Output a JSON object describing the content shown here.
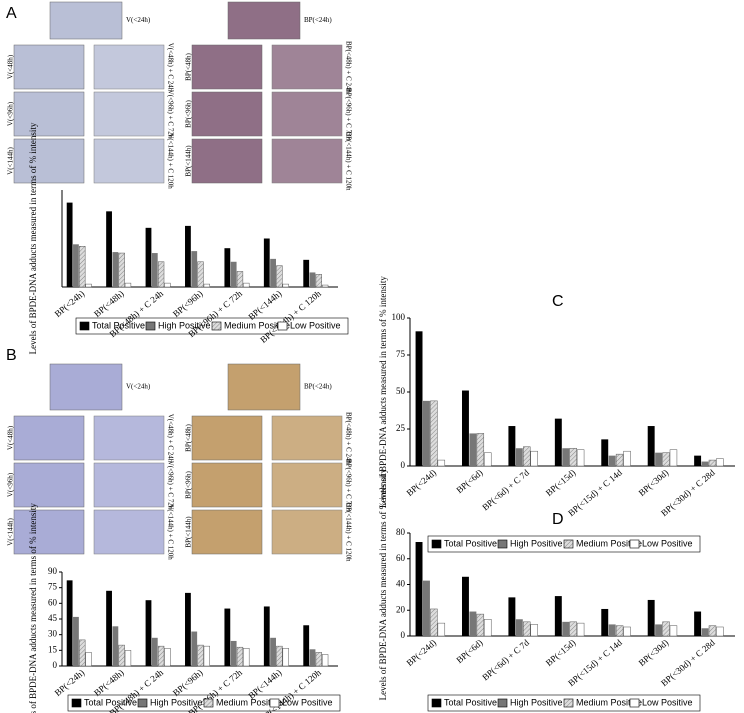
{
  "panels": [
    {
      "label": "A",
      "images": [
        "V(<24h)",
        "V(<48h)",
        "V(<48h) + C 24h",
        "V(<96h)",
        "V(<96h) + C 72h",
        "V(<144h)",
        "V(<144h) + C 120h",
        "BP(<24h)",
        "BP(<48h)",
        "BP(<48h) + C 24h",
        "BP(<96h)",
        "BP(<96h) + C 72h",
        "BP(<144h)",
        "BP(<144h) + C 120h"
      ]
    },
    {
      "label": "B",
      "images": [
        "V(<24h)",
        "V(<48h)",
        "V(<48h) + C 24h",
        "V(<96h)",
        "V(<96h) + C 72h",
        "V(<144h)",
        "V(<144h) + C 120h",
        "BP(<24h)",
        "BP(<48h)",
        "BP(<48h) + C 24h",
        "BP(<96h)",
        "BP(<96h) + C 72h",
        "BP(<144h)",
        "BP(<144h) + C 120h"
      ]
    },
    {
      "label": "C"
    },
    {
      "label": "D"
    }
  ],
  "chart_data": [
    {
      "type": "bar",
      "ylabel": "Levels of BPDE-DNA adducts measured in terms of % intensity",
      "categories": [
        "BP(<24h)",
        "BP(<48h)",
        "BP(<48h) + C 24h",
        "BP(<96h)",
        "BP(<96h) + C 72h",
        "BP(<144h)",
        "BP(<144h) + C 120h"
      ],
      "series": [
        {
          "name": "Total Positive",
          "color": "#000000",
          "values": [
            87,
            78,
            61,
            63,
            40,
            50,
            28
          ]
        },
        {
          "name": "High Positive",
          "color": "#777777",
          "values": [
            44,
            36,
            35,
            37,
            26,
            29,
            15
          ]
        },
        {
          "name": "Medium Positive",
          "color": "#cccccc",
          "values": [
            42,
            35,
            26,
            26,
            16,
            22,
            13
          ]
        },
        {
          "name": "Low Positive",
          "color": "#ffffff",
          "values": [
            3,
            4,
            4,
            3,
            4,
            3,
            2
          ]
        }
      ],
      "ylim": [
        0,
        100
      ]
    },
    {
      "type": "bar",
      "ylabel": "Levels of BPDE-DNA adducts measured in terms of % intensity",
      "categories": [
        "BP(<24h)",
        "BP(<48h)",
        "BP(<48h) + C 24h",
        "BP(<96h)",
        "BP(<96h) + C 72h",
        "BP(<144h)",
        "BP(<144h) + C 120h"
      ],
      "series": [
        {
          "name": "Total Positive",
          "color": "#000000",
          "values": [
            82,
            72,
            63,
            70,
            55,
            57,
            39
          ]
        },
        {
          "name": "High Positive",
          "color": "#777777",
          "values": [
            47,
            38,
            27,
            33,
            24,
            27,
            16
          ]
        },
        {
          "name": "Medium Positive",
          "color": "#cccccc",
          "values": [
            25,
            20,
            19,
            20,
            18,
            19,
            13
          ]
        },
        {
          "name": "Low Positive",
          "color": "#ffffff",
          "values": [
            13,
            15,
            17,
            19,
            17,
            17,
            11
          ]
        }
      ],
      "ylim": [
        0,
        90
      ],
      "yticks": [
        0,
        15,
        30,
        45,
        60,
        75,
        90
      ]
    },
    {
      "type": "bar",
      "ylabel": "Levels of BPDE-DNA adducts measured in terms of % intensity",
      "categories": [
        "BP(<24d)",
        "BP(<6d)",
        "BP(<6d) + C 7d",
        "BP(<15d)",
        "BP(<15d) + C 14d",
        "BP(<30d)",
        "BP(<30d) + C 28d"
      ],
      "series": [
        {
          "name": "Total Positive",
          "color": "#000000",
          "values": [
            91,
            51,
            27,
            32,
            18,
            27,
            7
          ]
        },
        {
          "name": "High Positive",
          "color": "#777777",
          "values": [
            44,
            22,
            12,
            12,
            7,
            9,
            3
          ]
        },
        {
          "name": "Medium Positive",
          "color": "#cccccc",
          "values": [
            44,
            22,
            13,
            12,
            8,
            9,
            4
          ]
        },
        {
          "name": "Low Positive",
          "color": "#ffffff",
          "values": [
            4,
            9,
            10,
            11,
            10,
            11,
            5
          ]
        }
      ],
      "ylim": [
        0,
        100
      ],
      "yticks": [
        0,
        25,
        50,
        75,
        100
      ]
    },
    {
      "type": "bar",
      "ylabel": "Levels of BPDE-DNA adducts measured in terms of % intensity",
      "categories": [
        "BP(<24d)",
        "BP(<6d)",
        "BP(<6d) + C 7d",
        "BP(<15d)",
        "BP(<15d) + C 14d",
        "BP(<30d)",
        "BP(<30d) + C 28d"
      ],
      "series": [
        {
          "name": "Total Positive",
          "color": "#000000",
          "values": [
            73,
            46,
            30,
            31,
            21,
            28,
            19
          ]
        },
        {
          "name": "High Positive",
          "color": "#777777",
          "values": [
            43,
            19,
            13,
            11,
            9,
            9,
            6
          ]
        },
        {
          "name": "Medium Positive",
          "color": "#cccccc",
          "values": [
            21,
            17,
            11,
            11,
            8,
            11,
            8
          ]
        },
        {
          "name": "Low Positive",
          "color": "#ffffff",
          "values": [
            10,
            13,
            9,
            10,
            7,
            8,
            7
          ]
        }
      ],
      "ylim": [
        0,
        80
      ],
      "yticks": [
        0,
        20,
        40,
        60,
        80
      ]
    }
  ]
}
